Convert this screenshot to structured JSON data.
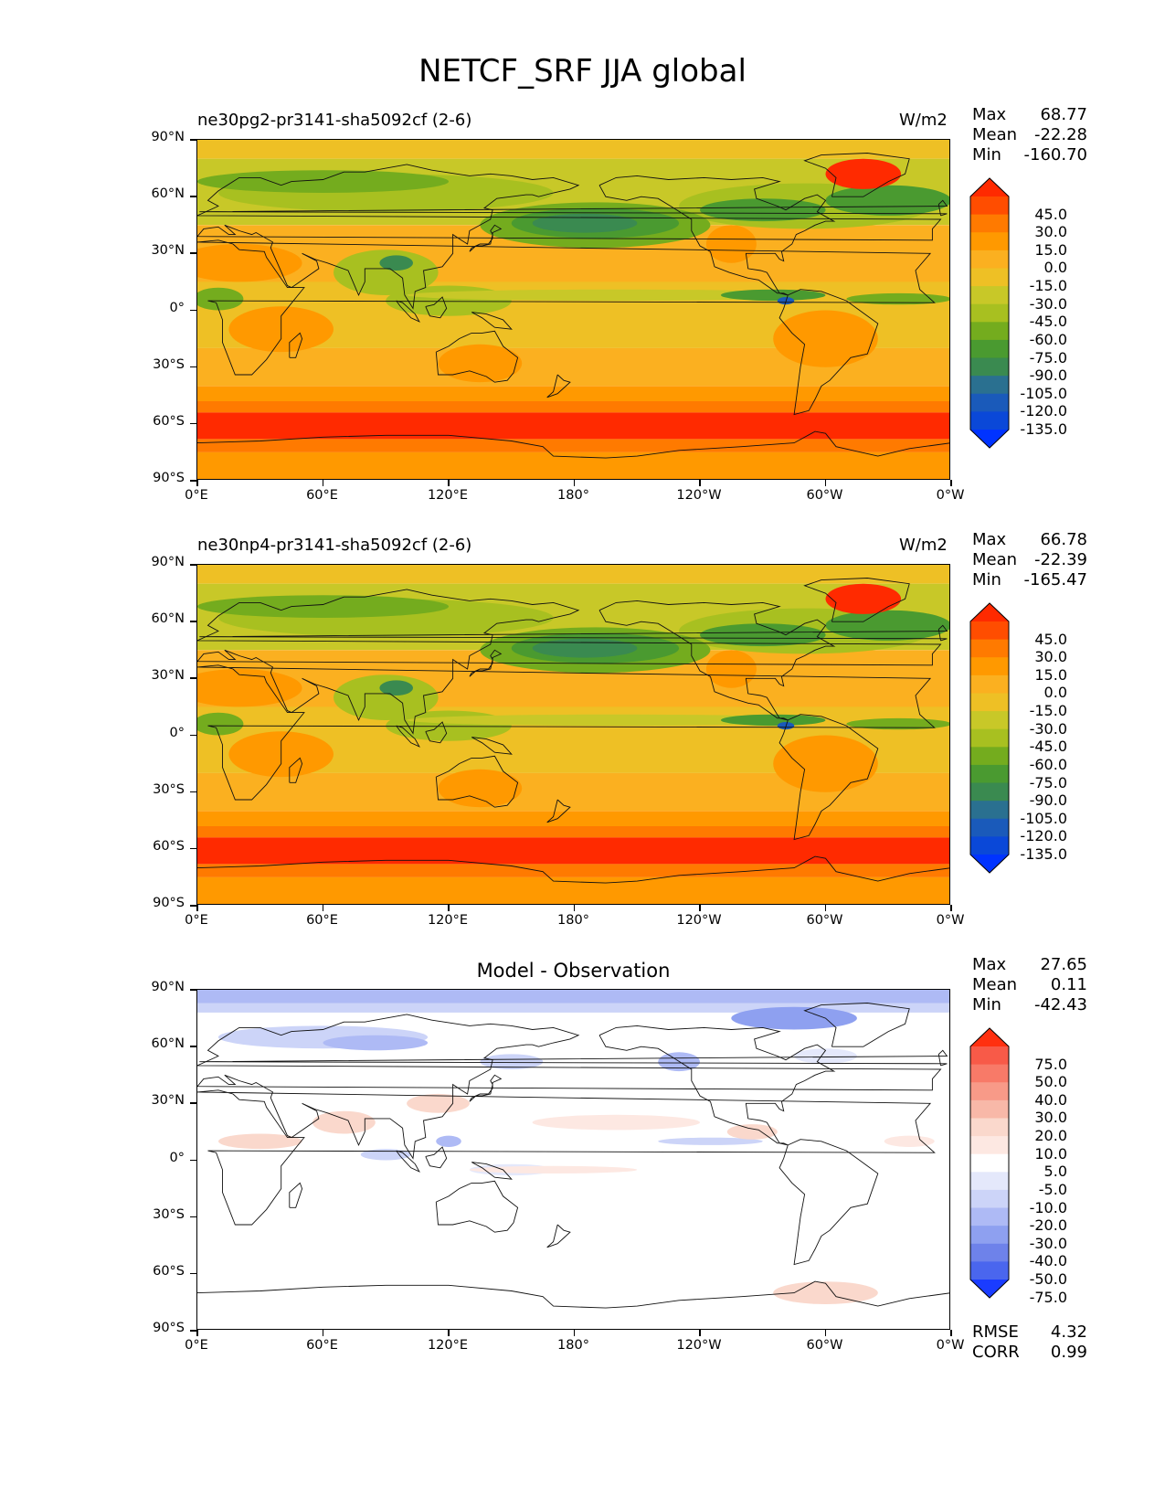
{
  "figure_title": "NETCF_SRF JJA global",
  "lat_ticks": [
    "90°N",
    "60°N",
    "30°N",
    "0°",
    "30°S",
    "60°S",
    "90°S"
  ],
  "lon_ticks": [
    "0°E",
    "60°E",
    "120°E",
    "180°",
    "120°W",
    "60°W",
    "0°W"
  ],
  "panels": [
    {
      "title": "ne30pg2-pr3141-sha5092cf (2-6)",
      "units": "W/m2",
      "stats": {
        "max_label": "Max",
        "max": "68.77",
        "mean_label": "Mean",
        "mean": "-22.28",
        "min_label": "Min",
        "min": "-160.70"
      },
      "colorbar_labels": [
        "45.0",
        "30.0",
        "15.0",
        "0.0",
        "-15.0",
        "-30.0",
        "-45.0",
        "-60.0",
        "-75.0",
        "-90.0",
        "-105.0",
        "-120.0",
        "-135.0"
      ],
      "colorbar_colors": [
        "#ff2a00",
        "#ff4d00",
        "#ff7a00",
        "#ff9900",
        "#fbb020",
        "#eec025",
        "#c8c828",
        "#a8c020",
        "#74ac1e",
        "#4a9a30",
        "#3a8a50",
        "#2a7090",
        "#1a5aba",
        "#0a48d8",
        "#0033ff"
      ]
    },
    {
      "title": "ne30np4-pr3141-sha5092cf (2-6)",
      "units": "W/m2",
      "stats": {
        "max_label": "Max",
        "max": "66.78",
        "mean_label": "Mean",
        "mean": "-22.39",
        "min_label": "Min",
        "min": "-165.47"
      },
      "colorbar_labels": [
        "45.0",
        "30.0",
        "15.0",
        "0.0",
        "-15.0",
        "-30.0",
        "-45.0",
        "-60.0",
        "-75.0",
        "-90.0",
        "-105.0",
        "-120.0",
        "-135.0"
      ],
      "colorbar_colors": [
        "#ff2a00",
        "#ff4d00",
        "#ff7a00",
        "#ff9900",
        "#fbb020",
        "#eec025",
        "#c8c828",
        "#a8c020",
        "#74ac1e",
        "#4a9a30",
        "#3a8a50",
        "#2a7090",
        "#1a5aba",
        "#0a48d8",
        "#0033ff"
      ]
    },
    {
      "title": "Model - Observation",
      "units": "",
      "stats": {
        "max_label": "Max",
        "max": "27.65",
        "mean_label": "Mean",
        "mean": "0.11",
        "min_label": "Min",
        "min": "-42.43",
        "rmse_label": "RMSE",
        "rmse": "4.32",
        "corr_label": "CORR",
        "corr": "0.99"
      },
      "colorbar_labels": [
        "75.0",
        "50.0",
        "40.0",
        "30.0",
        "20.0",
        "10.0",
        "5.0",
        "-5.0",
        "-10.0",
        "-20.0",
        "-30.0",
        "-40.0",
        "-50.0",
        "-75.0"
      ],
      "colorbar_colors": [
        "#ff3010",
        "#f85a48",
        "#f87a68",
        "#f89a88",
        "#f8b8a8",
        "#fad8cc",
        "#fde8e2",
        "#ffffff",
        "#e4e8fb",
        "#ccd4f8",
        "#aebaf5",
        "#8ea0f0",
        "#6e82ea",
        "#4a66ee",
        "#1a3cff"
      ]
    }
  ]
}
